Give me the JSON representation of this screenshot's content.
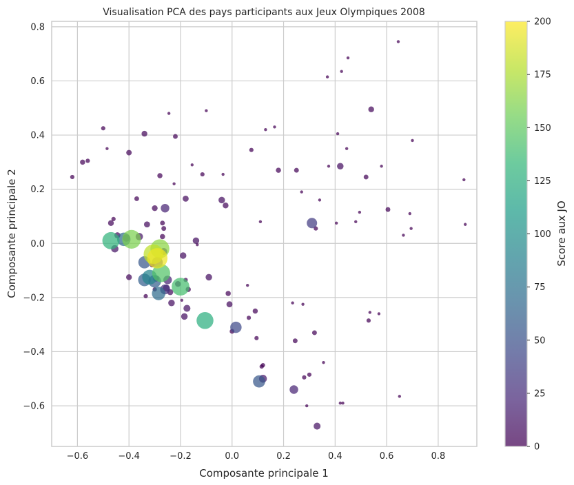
{
  "chart_data": {
    "type": "scatter",
    "title": "Visualisation PCA des pays participants aux Jeux Olympiques 2008",
    "xlabel": "Composante principale 1",
    "ylabel": "Composante principale 2",
    "xlim": [
      -0.7,
      0.95
    ],
    "ylim": [
      -0.75,
      0.82
    ],
    "xticks": [
      "−0.6",
      "−0.4",
      "−0.2",
      "0.0",
      "0.2",
      "0.4",
      "0.6",
      "0.8"
    ],
    "yticks": [
      "−0.6",
      "−0.4",
      "−0.2",
      "0.0",
      "0.2",
      "0.4",
      "0.6",
      "0.8"
    ],
    "xtick_values": [
      -0.6,
      -0.4,
      -0.2,
      0.0,
      0.2,
      0.4,
      0.6,
      0.8
    ],
    "ytick_values": [
      -0.6,
      -0.4,
      -0.2,
      0.0,
      0.2,
      0.4,
      0.6,
      0.8
    ],
    "grid": true,
    "colormap": "viridis",
    "colorbar": {
      "label": "Score aux JO",
      "range": [
        0,
        200
      ],
      "ticks": [
        "0",
        "25",
        "50",
        "75",
        "100",
        "125",
        "150",
        "175",
        "200"
      ],
      "tick_values": [
        0,
        25,
        50,
        75,
        100,
        125,
        150,
        175,
        200
      ]
    },
    "colors": {
      "grid": "#cccccc",
      "background": "#ffffff",
      "viridis_stops": [
        "#440154",
        "#482878",
        "#3e4989",
        "#31688e",
        "#26828e",
        "#1f9e89",
        "#35b779",
        "#6ece58",
        "#b5de2b",
        "#fde725"
      ]
    },
    "points": [
      {
        "x": -0.62,
        "y": 0.245,
        "score": 1
      },
      {
        "x": -0.58,
        "y": 0.3,
        "score": 3
      },
      {
        "x": -0.56,
        "y": 0.305,
        "score": 1
      },
      {
        "x": -0.5,
        "y": 0.425,
        "score": 1
      },
      {
        "x": -0.485,
        "y": 0.35,
        "score": 0
      },
      {
        "x": -0.47,
        "y": 0.075,
        "score": 5
      },
      {
        "x": -0.46,
        "y": 0.09,
        "score": 1
      },
      {
        "x": -0.455,
        "y": -0.02,
        "score": 12
      },
      {
        "x": -0.445,
        "y": 0.03,
        "score": 6
      },
      {
        "x": -0.47,
        "y": 0.01,
        "score": 130
      },
      {
        "x": -0.42,
        "y": 0.015,
        "score": 70
      },
      {
        "x": -0.41,
        "y": 0.02,
        "score": 12
      },
      {
        "x": -0.4,
        "y": 0.335,
        "score": 4
      },
      {
        "x": -0.4,
        "y": -0.125,
        "score": 5
      },
      {
        "x": -0.39,
        "y": 0.015,
        "score": 160
      },
      {
        "x": -0.37,
        "y": 0.165,
        "score": 2
      },
      {
        "x": -0.36,
        "y": 0.025,
        "score": 12
      },
      {
        "x": -0.34,
        "y": 0.405,
        "score": 5
      },
      {
        "x": -0.34,
        "y": -0.07,
        "score": 55
      },
      {
        "x": -0.34,
        "y": -0.135,
        "score": 60
      },
      {
        "x": -0.335,
        "y": -0.195,
        "score": 1
      },
      {
        "x": -0.33,
        "y": 0.07,
        "score": 6
      },
      {
        "x": -0.32,
        "y": -0.125,
        "score": 90
      },
      {
        "x": -0.31,
        "y": -0.08,
        "score": 2
      },
      {
        "x": -0.305,
        "y": -0.04,
        "score": 180
      },
      {
        "x": -0.3,
        "y": -0.14,
        "score": 60
      },
      {
        "x": -0.3,
        "y": 0.13,
        "score": 5
      },
      {
        "x": -0.3,
        "y": -0.17,
        "score": 1
      },
      {
        "x": -0.295,
        "y": -0.13,
        "score": 6
      },
      {
        "x": -0.29,
        "y": -0.055,
        "score": 195
      },
      {
        "x": -0.29,
        "y": -0.07,
        "score": 40
      },
      {
        "x": -0.285,
        "y": -0.185,
        "score": 70
      },
      {
        "x": -0.28,
        "y": -0.02,
        "score": 165
      },
      {
        "x": -0.28,
        "y": 0.25,
        "score": 3
      },
      {
        "x": -0.275,
        "y": -0.11,
        "score": 145
      },
      {
        "x": -0.27,
        "y": 0.025,
        "score": 3
      },
      {
        "x": -0.27,
        "y": 0.075,
        "score": 2
      },
      {
        "x": -0.265,
        "y": 0.055,
        "score": 2
      },
      {
        "x": -0.265,
        "y": -0.03,
        "score": 10
      },
      {
        "x": -0.26,
        "y": 0.13,
        "score": 20
      },
      {
        "x": -0.26,
        "y": -0.17,
        "score": 30
      },
      {
        "x": -0.255,
        "y": -0.165,
        "score": 10
      },
      {
        "x": -0.25,
        "y": -0.135,
        "score": 20
      },
      {
        "x": -0.245,
        "y": 0.48,
        "score": 0
      },
      {
        "x": -0.24,
        "y": -0.18,
        "score": 6
      },
      {
        "x": -0.235,
        "y": -0.22,
        "score": 8
      },
      {
        "x": -0.225,
        "y": 0.22,
        "score": 0
      },
      {
        "x": -0.22,
        "y": 0.395,
        "score": 2
      },
      {
        "x": -0.21,
        "y": -0.15,
        "score": 5
      },
      {
        "x": -0.2,
        "y": -0.16,
        "score": 140
      },
      {
        "x": -0.195,
        "y": -0.21,
        "score": 0
      },
      {
        "x": -0.19,
        "y": -0.045,
        "score": 8
      },
      {
        "x": -0.185,
        "y": -0.27,
        "score": 8
      },
      {
        "x": -0.18,
        "y": 0.165,
        "score": 6
      },
      {
        "x": -0.18,
        "y": -0.135,
        "score": 1
      },
      {
        "x": -0.175,
        "y": -0.24,
        "score": 10
      },
      {
        "x": -0.17,
        "y": -0.17,
        "score": 3
      },
      {
        "x": -0.155,
        "y": 0.29,
        "score": 0
      },
      {
        "x": -0.14,
        "y": 0.01,
        "score": 8
      },
      {
        "x": -0.135,
        "y": -0.005,
        "score": 0
      },
      {
        "x": -0.115,
        "y": 0.255,
        "score": 1
      },
      {
        "x": -0.105,
        "y": -0.285,
        "score": 125
      },
      {
        "x": -0.1,
        "y": 0.49,
        "score": 0
      },
      {
        "x": -0.09,
        "y": -0.125,
        "score": 8
      },
      {
        "x": -0.04,
        "y": 0.16,
        "score": 8
      },
      {
        "x": -0.035,
        "y": 0.255,
        "score": 0
      },
      {
        "x": -0.025,
        "y": 0.14,
        "score": 5
      },
      {
        "x": -0.015,
        "y": -0.185,
        "score": 3
      },
      {
        "x": -0.01,
        "y": -0.225,
        "score": 6
      },
      {
        "x": 0.0,
        "y": -0.325,
        "score": 2
      },
      {
        "x": 0.015,
        "y": -0.31,
        "score": 45
      },
      {
        "x": 0.06,
        "y": -0.155,
        "score": 0
      },
      {
        "x": 0.065,
        "y": -0.275,
        "score": 1
      },
      {
        "x": 0.075,
        "y": 0.345,
        "score": 1
      },
      {
        "x": 0.09,
        "y": -0.25,
        "score": 3
      },
      {
        "x": 0.095,
        "y": -0.35,
        "score": 1
      },
      {
        "x": 0.105,
        "y": -0.51,
        "score": 55
      },
      {
        "x": 0.11,
        "y": 0.08,
        "score": 0
      },
      {
        "x": 0.115,
        "y": -0.455,
        "score": 1
      },
      {
        "x": 0.12,
        "y": -0.45,
        "score": 1
      },
      {
        "x": 0.12,
        "y": -0.5,
        "score": 15
      },
      {
        "x": 0.13,
        "y": 0.42,
        "score": 0
      },
      {
        "x": 0.165,
        "y": 0.43,
        "score": 0
      },
      {
        "x": 0.18,
        "y": 0.27,
        "score": 3
      },
      {
        "x": 0.235,
        "y": -0.22,
        "score": 0
      },
      {
        "x": 0.24,
        "y": -0.54,
        "score": 20
      },
      {
        "x": 0.245,
        "y": -0.36,
        "score": 2
      },
      {
        "x": 0.25,
        "y": 0.27,
        "score": 2
      },
      {
        "x": 0.27,
        "y": 0.19,
        "score": 0
      },
      {
        "x": 0.275,
        "y": -0.225,
        "score": 0
      },
      {
        "x": 0.28,
        "y": -0.495,
        "score": 1
      },
      {
        "x": 0.29,
        "y": -0.6,
        "score": 0
      },
      {
        "x": 0.3,
        "y": -0.485,
        "score": 1
      },
      {
        "x": 0.31,
        "y": 0.075,
        "score": 35
      },
      {
        "x": 0.32,
        "y": -0.33,
        "score": 2
      },
      {
        "x": 0.325,
        "y": 0.055,
        "score": 1
      },
      {
        "x": 0.33,
        "y": -0.675,
        "score": 10
      },
      {
        "x": 0.34,
        "y": 0.16,
        "score": 0
      },
      {
        "x": 0.355,
        "y": -0.44,
        "score": 0
      },
      {
        "x": 0.37,
        "y": 0.615,
        "score": 0
      },
      {
        "x": 0.375,
        "y": 0.285,
        "score": 0
      },
      {
        "x": 0.405,
        "y": 0.075,
        "score": 0
      },
      {
        "x": 0.41,
        "y": 0.405,
        "score": 0
      },
      {
        "x": 0.42,
        "y": 0.285,
        "score": 8
      },
      {
        "x": 0.42,
        "y": -0.59,
        "score": 0
      },
      {
        "x": 0.425,
        "y": 0.635,
        "score": 0
      },
      {
        "x": 0.43,
        "y": -0.59,
        "score": 0
      },
      {
        "x": 0.445,
        "y": 0.35,
        "score": 0
      },
      {
        "x": 0.45,
        "y": 0.685,
        "score": 0
      },
      {
        "x": 0.48,
        "y": 0.08,
        "score": 0
      },
      {
        "x": 0.495,
        "y": 0.115,
        "score": 0
      },
      {
        "x": 0.52,
        "y": 0.245,
        "score": 2
      },
      {
        "x": 0.53,
        "y": -0.285,
        "score": 1
      },
      {
        "x": 0.535,
        "y": -0.255,
        "score": 0
      },
      {
        "x": 0.54,
        "y": 0.495,
        "score": 5
      },
      {
        "x": 0.57,
        "y": -0.26,
        "score": 0
      },
      {
        "x": 0.58,
        "y": 0.285,
        "score": 0
      },
      {
        "x": 0.605,
        "y": 0.125,
        "score": 2
      },
      {
        "x": 0.645,
        "y": 0.745,
        "score": 0
      },
      {
        "x": 0.65,
        "y": -0.565,
        "score": 0
      },
      {
        "x": 0.665,
        "y": 0.03,
        "score": 0
      },
      {
        "x": 0.69,
        "y": 0.11,
        "score": 0
      },
      {
        "x": 0.695,
        "y": 0.055,
        "score": 0
      },
      {
        "x": 0.7,
        "y": 0.38,
        "score": 0
      },
      {
        "x": 0.9,
        "y": 0.235,
        "score": 0
      },
      {
        "x": 0.905,
        "y": 0.07,
        "score": 0
      }
    ]
  }
}
